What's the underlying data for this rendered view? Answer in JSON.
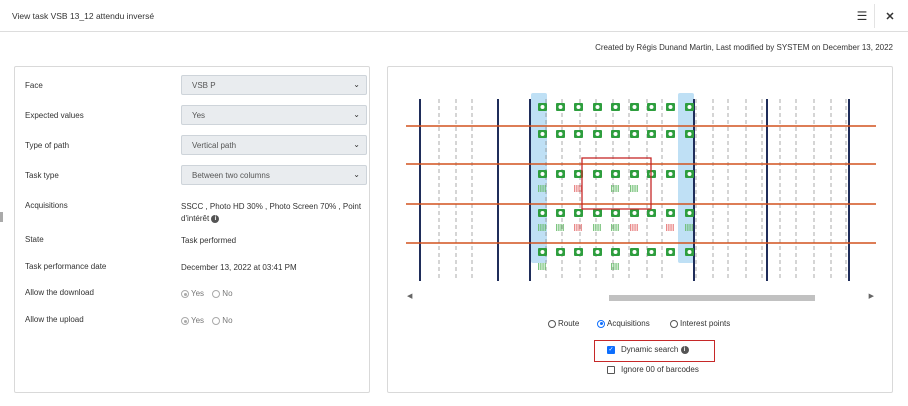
{
  "header": {
    "title": "View task VSB 13_12 attendu inversé",
    "list_icon": "list-icon",
    "close_icon": "close-icon"
  },
  "meta_line": "Created by Régis Dunand Martin, Last modified by SYSTEM on December 13, 2022",
  "form": {
    "face": {
      "label": "Face",
      "value": "VSB P"
    },
    "expected_values": {
      "label": "Expected values",
      "value": "Yes"
    },
    "type_of_path": {
      "label": "Type of path",
      "value": "Vertical path"
    },
    "task_type": {
      "label": "Task type",
      "value": "Between two columns"
    },
    "acquisitions": {
      "label": "Acquisitions",
      "value": "SSCC , Photo HD 30% , Photo Screen 70% , Point d'intérêt"
    },
    "state": {
      "label": "State",
      "value": "Task performed"
    },
    "task_performance_date": {
      "label": "Task performance date",
      "value": "December 13, 2022 at 03:41 PM"
    },
    "allow_download": {
      "label": "Allow the download",
      "yes": "Yes",
      "no": "No",
      "selected": "Yes"
    },
    "allow_upload": {
      "label": "Allow the upload",
      "yes": "Yes",
      "no": "No",
      "selected": "Yes"
    }
  },
  "view_options": {
    "route": "Route",
    "acquisitions": "Acquisitions",
    "interest_points": "Interest points",
    "selected": "Acquisitions"
  },
  "dynamic_search": {
    "label": "Dynamic search",
    "checked": true
  },
  "ignore_barcodes": {
    "label": "Ignore 00 of barcodes",
    "checked": false
  },
  "colors": {
    "column_line": "#1f2d5a",
    "shelf_line": "#d2521e",
    "camera_green": "#2e9e3e",
    "highlight_col": "#bfe0f5",
    "selection_red": "#c62828"
  },
  "planogram": {
    "rows_with_cameras": 5,
    "camera_columns": 9,
    "barcode_marks": [
      [
        "green",
        "",
        "red",
        "",
        "green",
        "green",
        "",
        "",
        ""
      ],
      [
        "green",
        "green",
        "red",
        "green",
        "green",
        "red",
        "",
        "red",
        "green"
      ],
      [
        "green",
        "",
        "",
        "",
        "green",
        "",
        "",
        "",
        ""
      ]
    ]
  }
}
